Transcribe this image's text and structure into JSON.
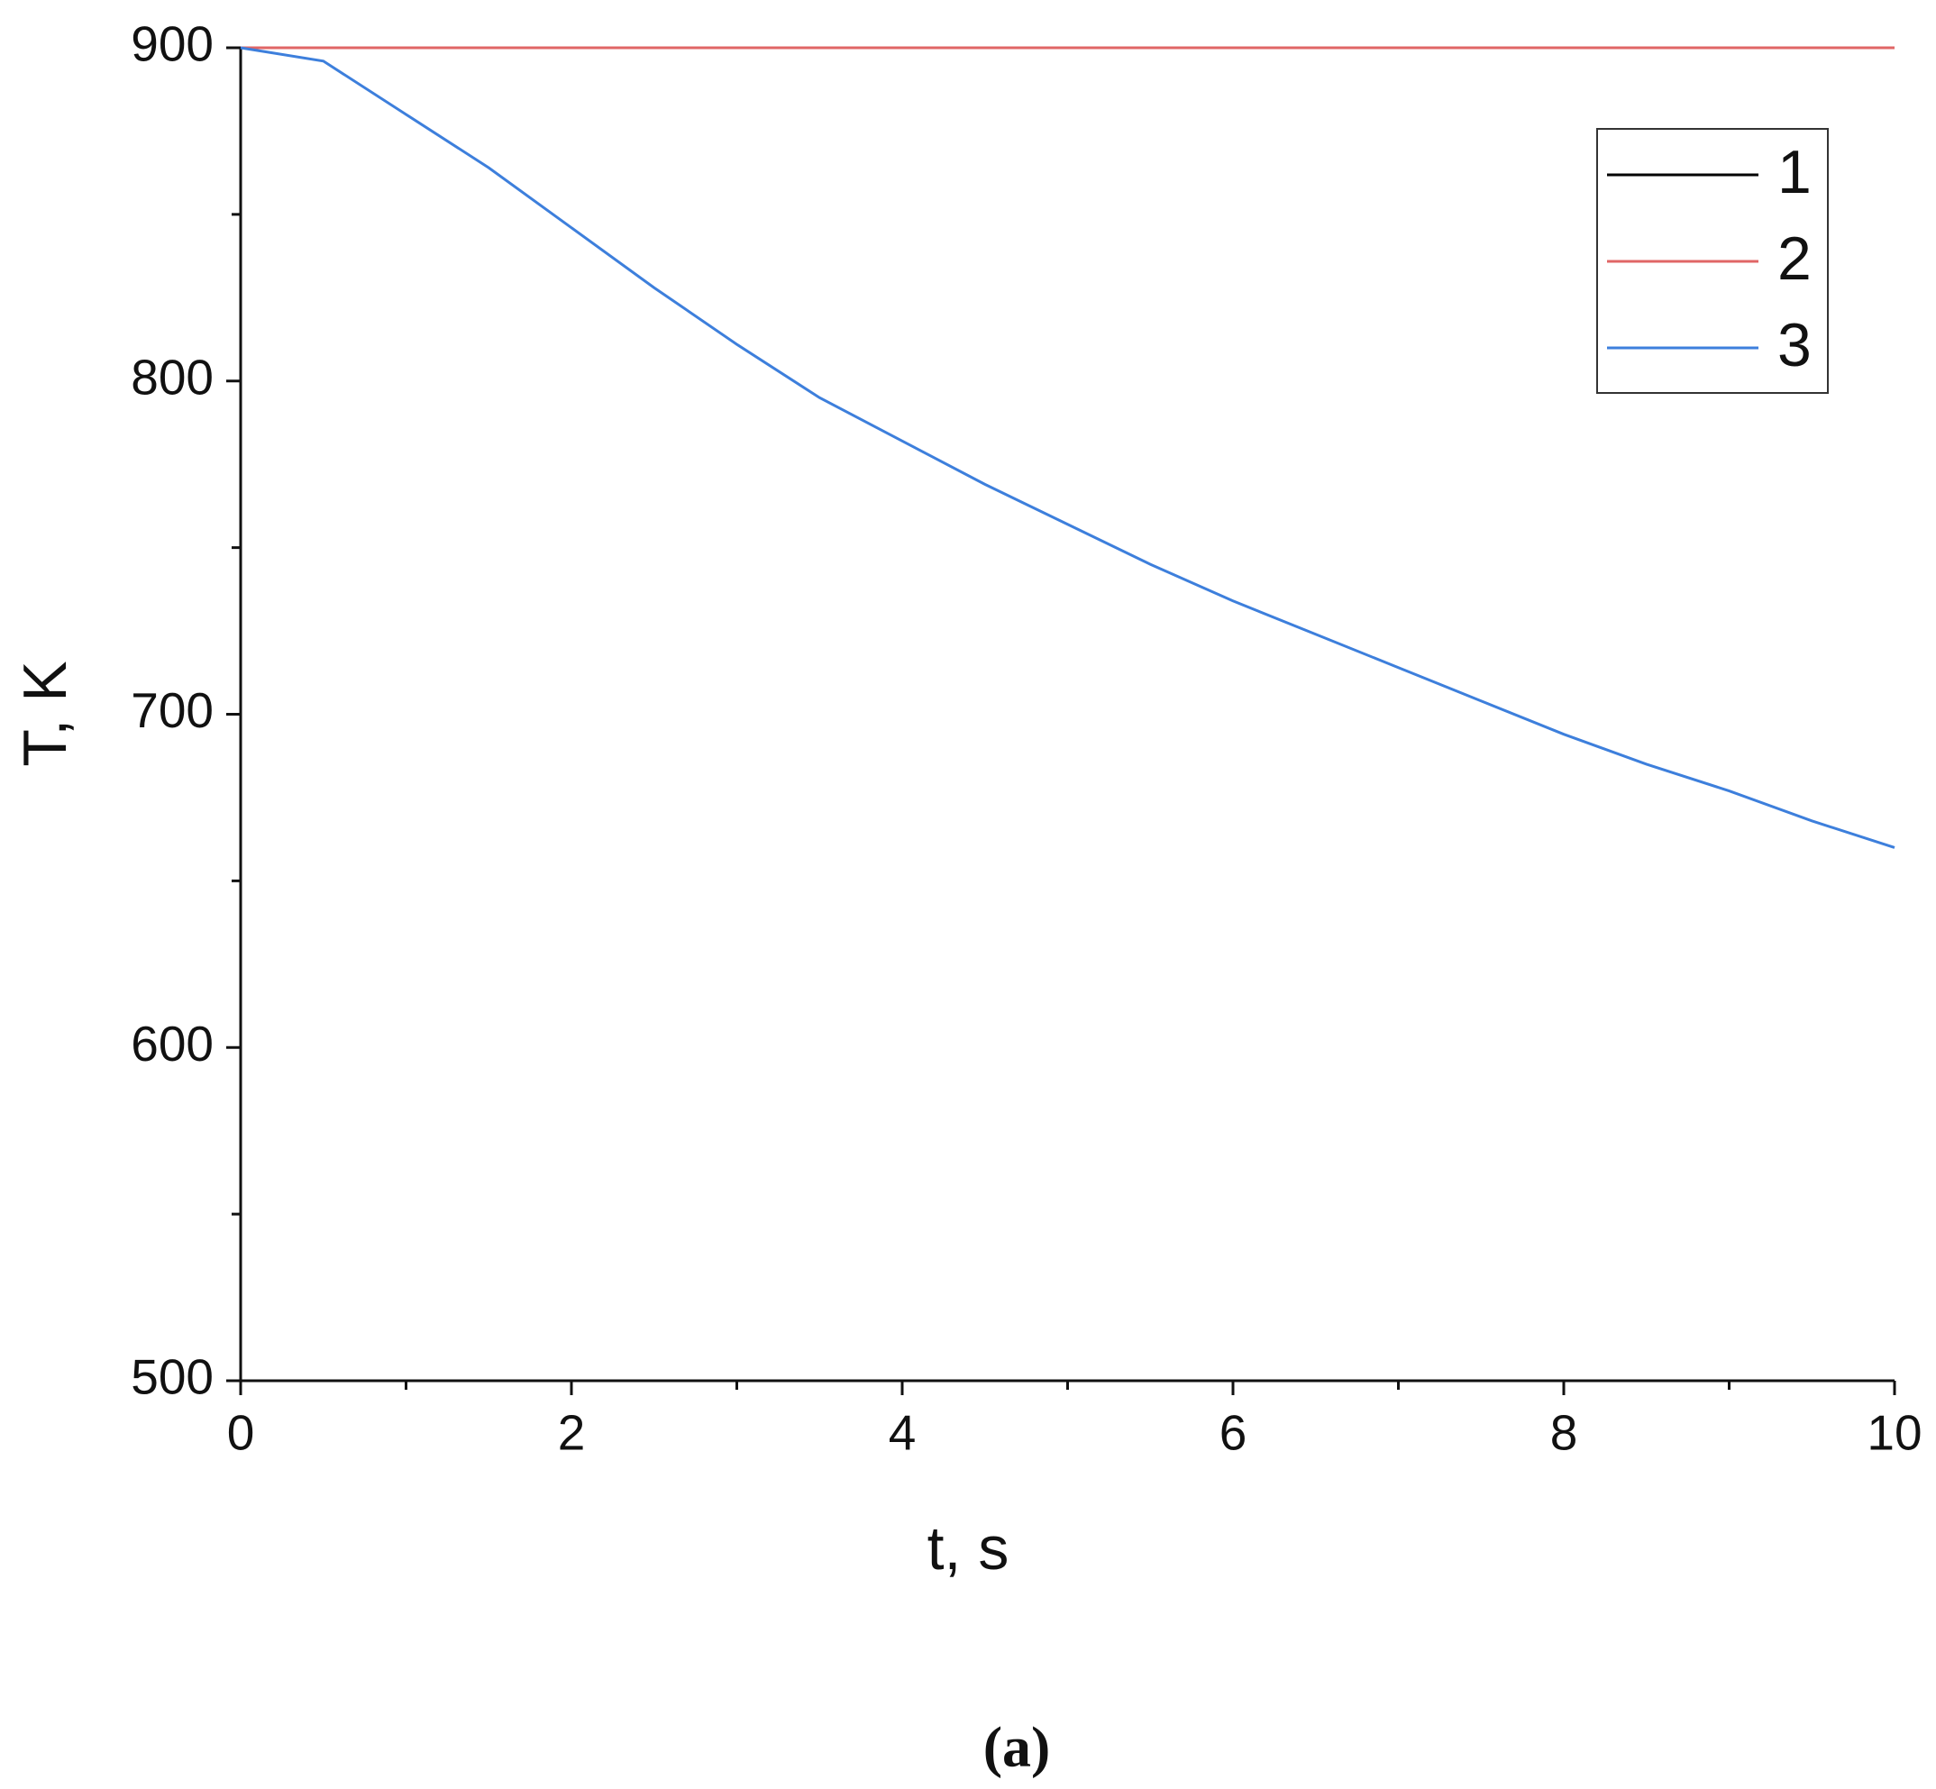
{
  "chart_data": {
    "type": "line",
    "x_label": "t, s",
    "y_label": "T, K",
    "caption": "(a)",
    "x": [
      0,
      0.5,
      1,
      1.5,
      2,
      2.5,
      3,
      3.5,
      4,
      4.5,
      5,
      5.5,
      6,
      6.5,
      7,
      7.5,
      8,
      8.5,
      9,
      9.5,
      10
    ],
    "series": [
      {
        "name": "1",
        "color": "#000000",
        "values": [
          900,
          900,
          900,
          900,
          900,
          900,
          900,
          900,
          900,
          900,
          900,
          900,
          900,
          900,
          900,
          900,
          900,
          900,
          900,
          900,
          900
        ]
      },
      {
        "name": "2",
        "color": "#e06666",
        "values": [
          900,
          900,
          900,
          900,
          900,
          900,
          900,
          900,
          900,
          900,
          900,
          900,
          900,
          900,
          900,
          900,
          900,
          900,
          900,
          900,
          900
        ]
      },
      {
        "name": "3",
        "color": "#3d7fdc",
        "values": [
          900,
          896,
          880,
          864,
          846,
          828,
          811,
          795,
          782,
          769,
          757,
          745,
          734,
          724,
          714,
          704,
          694,
          685,
          677,
          668,
          660
        ]
      }
    ],
    "xlim": [
      0,
      10
    ],
    "xticks": [
      0,
      2,
      4,
      6,
      8,
      10
    ],
    "xticks_minor": [
      1,
      3,
      5,
      7,
      9
    ],
    "ylim": [
      500,
      900
    ],
    "yticks": [
      500,
      600,
      700,
      800,
      900
    ],
    "yticks_minor": [
      550,
      650,
      750,
      850
    ],
    "legend": "upper-right"
  }
}
